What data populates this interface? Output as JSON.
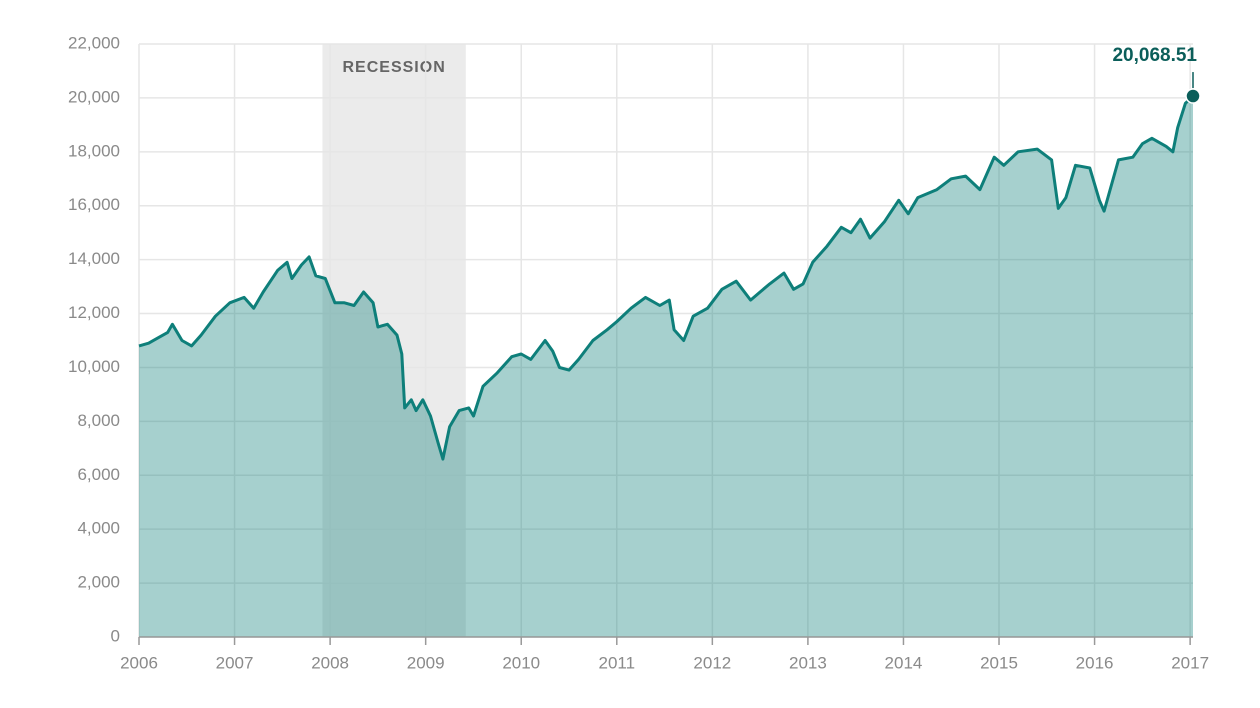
{
  "chart_data": {
    "type": "area",
    "x": [
      2006.0,
      2006.1,
      2006.2,
      2006.3,
      2006.35,
      2006.45,
      2006.55,
      2006.65,
      2006.8,
      2006.95,
      2007.1,
      2007.2,
      2007.3,
      2007.45,
      2007.55,
      2007.6,
      2007.7,
      2007.78,
      2007.85,
      2007.95,
      2008.05,
      2008.15,
      2008.25,
      2008.35,
      2008.45,
      2008.5,
      2008.6,
      2008.7,
      2008.75,
      2008.78,
      2008.85,
      2008.9,
      2008.97,
      2009.05,
      2009.13,
      2009.18,
      2009.25,
      2009.35,
      2009.45,
      2009.5,
      2009.6,
      2009.75,
      2009.9,
      2010.0,
      2010.1,
      2010.25,
      2010.33,
      2010.4,
      2010.5,
      2010.6,
      2010.75,
      2010.9,
      2011.0,
      2011.15,
      2011.3,
      2011.45,
      2011.55,
      2011.6,
      2011.7,
      2011.8,
      2011.95,
      2012.1,
      2012.25,
      2012.4,
      2012.5,
      2012.6,
      2012.75,
      2012.85,
      2012.95,
      2013.05,
      2013.2,
      2013.35,
      2013.45,
      2013.55,
      2013.65,
      2013.8,
      2013.95,
      2014.05,
      2014.15,
      2014.35,
      2014.5,
      2014.65,
      2014.8,
      2014.95,
      2015.05,
      2015.2,
      2015.4,
      2015.55,
      2015.62,
      2015.7,
      2015.8,
      2015.95,
      2016.05,
      2016.1,
      2016.25,
      2016.4,
      2016.5,
      2016.6,
      2016.75,
      2016.82,
      2016.87,
      2016.95,
      2017.03
    ],
    "values": [
      10800,
      10900,
      11100,
      11300,
      11600,
      11000,
      10800,
      11200,
      11900,
      12400,
      12600,
      12200,
      12800,
      13600,
      13900,
      13300,
      13800,
      14100,
      13400,
      13300,
      12400,
      12400,
      12300,
      12800,
      12400,
      11500,
      11600,
      11200,
      10500,
      8500,
      8800,
      8400,
      8800,
      8200,
      7200,
      6600,
      7800,
      8400,
      8500,
      8200,
      9300,
      9800,
      10400,
      10500,
      10300,
      11000,
      10600,
      10000,
      9900,
      10300,
      11000,
      11400,
      11700,
      12200,
      12600,
      12300,
      12500,
      11400,
      11000,
      11900,
      12200,
      12900,
      13200,
      12500,
      12800,
      13100,
      13500,
      12900,
      13100,
      13900,
      14500,
      15200,
      15000,
      15500,
      14800,
      15400,
      16200,
      15700,
      16300,
      16600,
      17000,
      17100,
      16600,
      17800,
      17500,
      18000,
      18100,
      17700,
      15900,
      16300,
      17500,
      17400,
      16200,
      15800,
      17700,
      17800,
      18300,
      18500,
      18200,
      18000,
      18900,
      19800,
      20068.51
    ],
    "end_label": "20,068.51",
    "color": "#0e7f7a",
    "fill": "#0e7f7a",
    "xlim": [
      2006,
      2017.03
    ],
    "xticks": [
      2006,
      2007,
      2008,
      2009,
      2010,
      2011,
      2012,
      2013,
      2014,
      2015,
      2016,
      2017
    ],
    "ylim": [
      0,
      22000
    ],
    "yticks": [
      0,
      {
        "value": 2000,
        "label": "2,000"
      },
      {
        "value": 4000,
        "label": "4,000"
      },
      {
        "value": 6000,
        "label": "6,000"
      },
      {
        "value": 8000,
        "label": "8,000"
      },
      {
        "value": 10000,
        "label": "10,000"
      },
      {
        "value": 12000,
        "label": "12,000"
      },
      {
        "value": 14000,
        "label": "14,000"
      },
      {
        "value": 16000,
        "label": "16,000"
      },
      {
        "value": 18000,
        "label": "18,000"
      },
      {
        "value": 20000,
        "label": "20,000"
      },
      {
        "value": 22000,
        "label": "22,000"
      }
    ],
    "grid": true,
    "shaded_regions": [
      {
        "label": "RECESSION",
        "x": [
          2007.92,
          2009.42
        ]
      }
    ]
  }
}
